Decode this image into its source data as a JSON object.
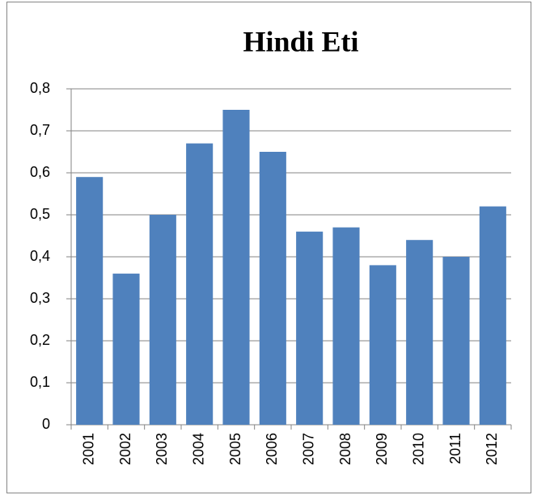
{
  "chart_data": {
    "type": "bar",
    "title": "Hindi Eti",
    "categories": [
      "2001",
      "2002",
      "2003",
      "2004",
      "2005",
      "2006",
      "2007",
      "2008",
      "2009",
      "2010",
      "2011",
      "2012"
    ],
    "values": [
      0.59,
      0.36,
      0.5,
      0.67,
      0.75,
      0.65,
      0.46,
      0.47,
      0.38,
      0.44,
      0.4,
      0.52
    ],
    "color": "#4f81bd",
    "ylim": [
      0,
      0.8
    ],
    "yticks": [
      0,
      {
        "value": 0.1,
        "label": "0,1"
      },
      {
        "value": 0.2,
        "label": "0,2"
      },
      {
        "value": 0.3,
        "label": "0,3"
      },
      {
        "value": 0.4,
        "label": "0,4"
      },
      {
        "value": 0.5,
        "label": "0,5"
      },
      {
        "value": 0.6,
        "label": "0,6"
      },
      {
        "value": 0.7,
        "label": "0,7"
      },
      {
        "value": 0.8,
        "label": "0,8"
      }
    ],
    "grid": true
  }
}
